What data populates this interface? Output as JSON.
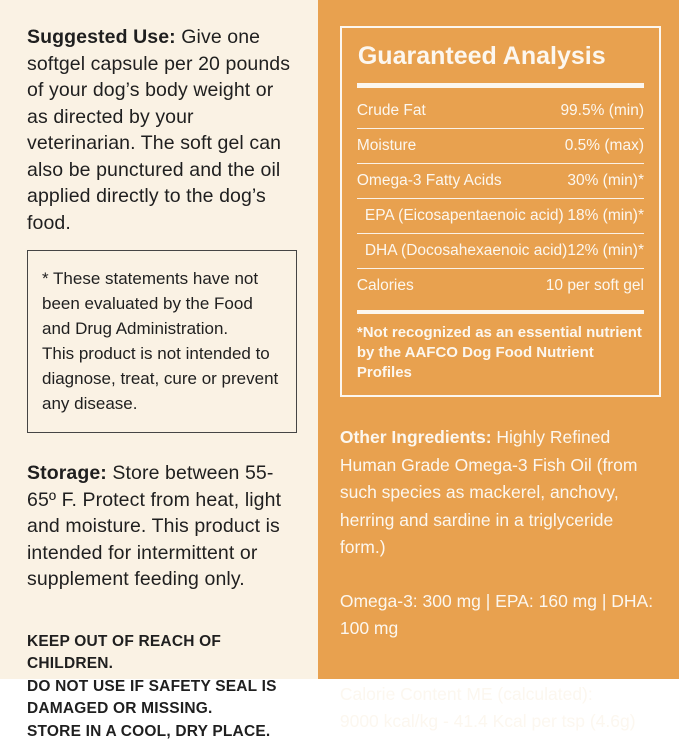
{
  "left_panel": {
    "suggested_use": {
      "label": "Suggested Use:",
      "text": " Give one softgel capsule per 20 pounds of your dog’s body weight or as directed by your veterinarian. The soft gel can also be punctured and the oil applied directly to the dog’s food."
    },
    "disclaimer_box": {
      "line1": "* These statements have not been evaluated by the Food and Drug Administration.",
      "line2": "This product is not intended to diagnose, treat, cure or prevent any disease."
    },
    "storage": {
      "label": "Storage:",
      "text": "  Store between 55-65º F. Protect from heat, light and moisture. This product is intended for intermittent or supplement feeding only."
    },
    "warnings": [
      "KEEP OUT OF REACH OF CHILDREN.",
      "DO NOT USE IF SAFETY SEAL IS",
      "DAMAGED OR MISSING.",
      "STORE IN A COOL, DRY PLACE."
    ]
  },
  "right_panel": {
    "guaranteed_analysis": {
      "title": "Guaranteed Analysis",
      "rows": [
        {
          "label": "Crude Fat",
          "value": "99.5% (min)"
        },
        {
          "label": "Moisture",
          "value": "0.5% (max)"
        },
        {
          "label": "Omega-3 Fatty Acids",
          "value": "30% (min)*"
        },
        {
          "label": "EPA (Eicosapentaenoic acid)",
          "value": "18% (min)*"
        },
        {
          "label": "DHA (Docosahexaenoic acid)",
          "value": "12% (min)*"
        },
        {
          "label": "Calories",
          "value": "10 per soft gel"
        }
      ],
      "footnote": "*Not recognized as an essential nutrient by the AAFCO Dog Food Nutrient Profiles"
    },
    "other_ingredients": {
      "label": "Other Ingredients:",
      "text": " Highly Refined Human Grade Omega-3 Fish Oil (from such species as mackerel, anchovy, herring and sardine in a triglyceride form.)"
    },
    "contents_line": "Omega-3: 300 mg  |  EPA: 160 mg  |  DHA: 100 mg",
    "calorie_content": {
      "line1": "Calorie Content ME (calculated):",
      "line2": "9000 kcal/kg - 41.4 Kcal per tsp (4.6g)"
    }
  },
  "colors": {
    "left_background": "#FAF2E4",
    "right_background": "#E8A14F",
    "dark_text": "#1f1f1f",
    "light_text": "#FCF7EF",
    "disclaimer_border": "#454545"
  }
}
